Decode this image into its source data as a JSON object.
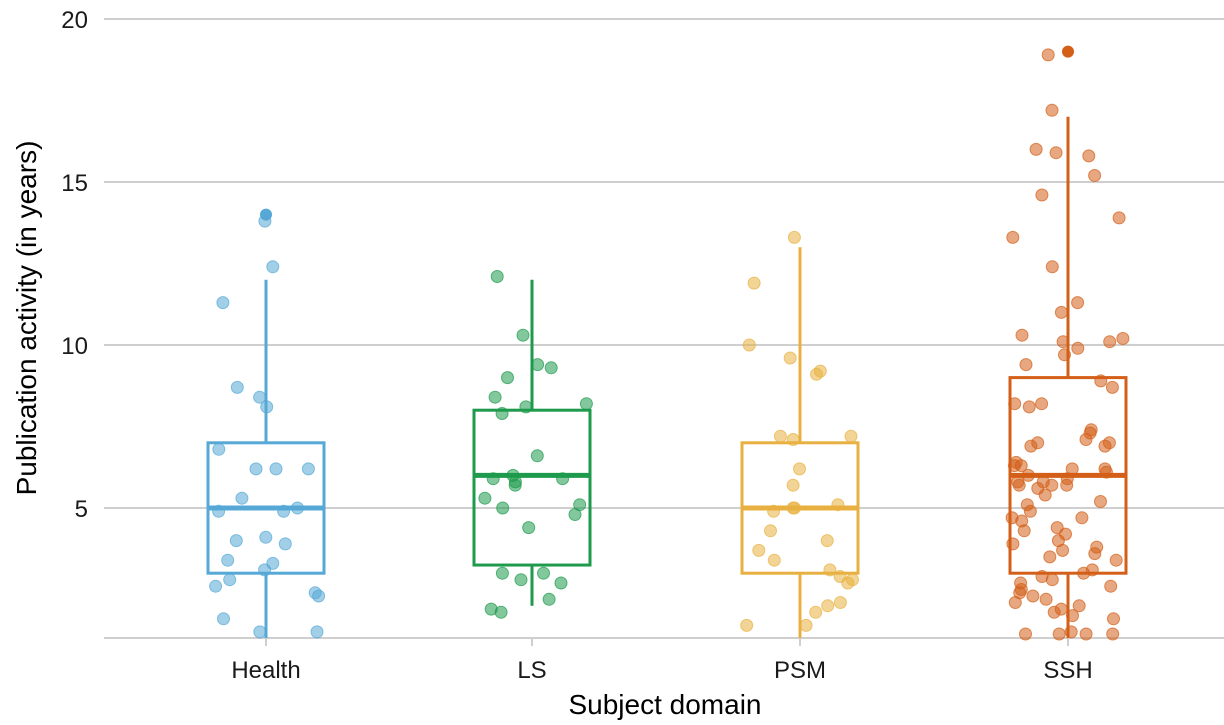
{
  "chart_data": {
    "type": "box",
    "xlabel": "Subject domain",
    "ylabel": "Publication activity (in years)",
    "ylim": [
      1,
      20
    ],
    "yticks": [
      5,
      10,
      15,
      20
    ],
    "grid": "horizontal",
    "legend": "none",
    "categories": [
      "Health",
      "LS",
      "PSM",
      "SSH"
    ],
    "colors": {
      "Health": "#56a8d6",
      "LS": "#1e9a4d",
      "PSM": "#e8b040",
      "SSH": "#d35f18"
    },
    "boxes": [
      {
        "category": "Health",
        "min": 1,
        "q1": 3,
        "median": 5,
        "q3": 7,
        "max": 12,
        "outliers": [
          14
        ]
      },
      {
        "category": "LS",
        "min": 2,
        "q1": 3.25,
        "median": 6,
        "q3": 8,
        "max": 12,
        "outliers": []
      },
      {
        "category": "PSM",
        "min": 1,
        "q1": 3,
        "median": 5,
        "q3": 7,
        "max": 13,
        "outliers": []
      },
      {
        "category": "SSH",
        "min": 1,
        "q1": 3,
        "median": 6,
        "q3": 9,
        "max": 17,
        "outliers": [
          19
        ]
      }
    ],
    "points": {
      "Health": [
        13.8,
        12.4,
        11.3,
        8.7,
        8.4,
        8.1,
        6.8,
        6.2,
        6.2,
        6.2,
        5.3,
        5.0,
        4.9,
        4.9,
        4.1,
        4.0,
        3.9,
        3.4,
        3.3,
        3.1,
        2.8,
        2.6,
        2.4,
        2.3,
        1.6,
        1.2,
        1.2
      ],
      "LS": [
        12.1,
        10.3,
        9.4,
        9.3,
        9.0,
        8.4,
        8.2,
        8.1,
        7.9,
        6.6,
        6.0,
        5.9,
        5.9,
        5.8,
        5.7,
        5.3,
        5.1,
        5.0,
        4.8,
        4.4,
        3.0,
        3.0,
        2.8,
        2.7,
        2.2,
        1.9,
        1.8
      ],
      "PSM": [
        13.3,
        11.9,
        10.0,
        9.6,
        9.2,
        9.1,
        7.2,
        7.2,
        7.1,
        6.2,
        5.7,
        5.1,
        5.0,
        5.0,
        4.9,
        4.3,
        4.0,
        3.7,
        3.4,
        3.1,
        2.9,
        2.8,
        2.7,
        2.1,
        2.0,
        1.8,
        1.4,
        1.4
      ],
      "SSH": [
        18.9,
        17.2,
        16.0,
        15.9,
        15.8,
        15.2,
        14.6,
        13.9,
        13.3,
        12.4,
        11.3,
        11.0,
        10.3,
        10.2,
        10.1,
        10.1,
        9.9,
        9.7,
        9.4,
        8.9,
        8.7,
        8.2,
        8.2,
        8.1,
        7.4,
        7.3,
        7.1,
        7.0,
        7.0,
        6.9,
        6.9,
        6.4,
        6.3,
        6.3,
        6.2,
        6.2,
        6.1,
        6.0,
        5.9,
        5.8,
        5.8,
        5.7,
        5.7,
        5.7,
        5.6,
        5.4,
        5.2,
        5.1,
        4.9,
        4.7,
        4.7,
        4.6,
        4.4,
        4.3,
        4.2,
        4.0,
        3.9,
        3.8,
        3.7,
        3.6,
        3.5,
        3.4,
        3.1,
        3.0,
        2.9,
        2.8,
        2.7,
        2.6,
        2.5,
        2.4,
        2.3,
        2.2,
        2.1,
        2.0,
        1.9,
        1.8,
        1.7,
        1.6,
        1.2,
        1.1,
        1.1,
        1.0,
        1.0
      ]
    }
  }
}
